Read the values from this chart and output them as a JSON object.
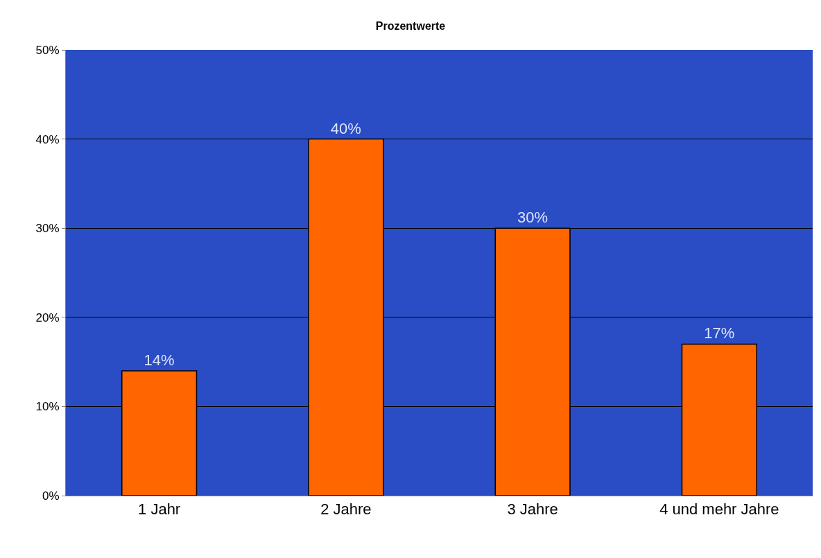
{
  "chart_data": {
    "type": "bar",
    "title": "Prozentwerte",
    "categories": [
      "1 Jahr",
      "2 Jahre",
      "3 Jahre",
      "4 und mehr Jahre"
    ],
    "values": [
      14,
      40,
      30,
      17
    ],
    "value_labels": [
      "14%",
      "40%",
      "30%",
      "17%"
    ],
    "color": "#ff6600",
    "ylim": [
      0,
      50
    ],
    "yticks": [
      {
        "value": 0,
        "label": "0%"
      },
      {
        "value": 10,
        "label": "10%"
      },
      {
        "value": 20,
        "label": "20%"
      },
      {
        "value": 30,
        "label": "30%"
      },
      {
        "value": 40,
        "label": "40%"
      },
      {
        "value": 50,
        "label": "50%"
      }
    ],
    "grid": "y"
  }
}
